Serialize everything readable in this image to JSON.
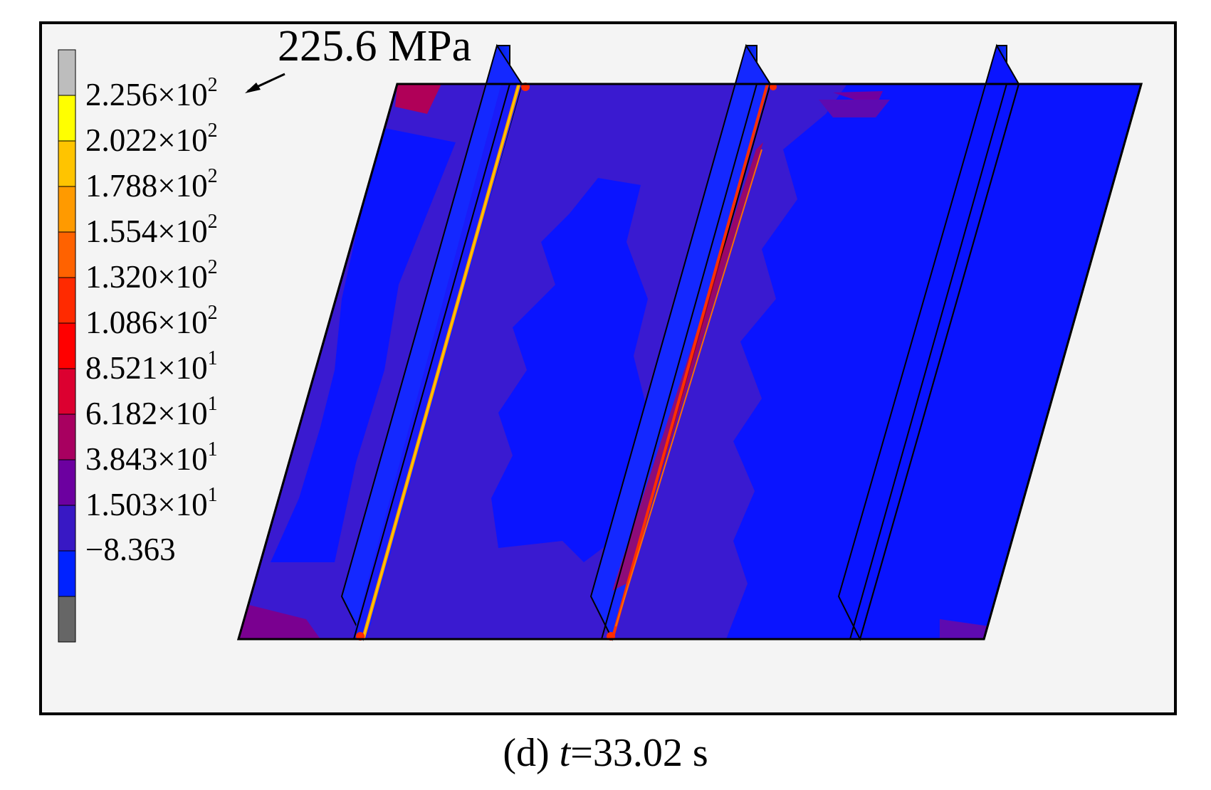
{
  "figure": {
    "annotation": "225.6 MPa",
    "caption_prefix": "(d) ",
    "caption_var": "t",
    "caption_suffix": "=33.02 s"
  },
  "legend": {
    "times": "×",
    "colors": [
      "#bdbdbd",
      "#ffff00",
      "#ffc400",
      "#ff9a00",
      "#ff6200",
      "#ff2a00",
      "#ff0000",
      "#dc0030",
      "#a80060",
      "#6c00a0",
      "#3818c4",
      "#0022ff",
      "#666666"
    ],
    "levels": [
      {
        "mant": "2.256",
        "exp": "2"
      },
      {
        "mant": "2.022",
        "exp": "2"
      },
      {
        "mant": "1.788",
        "exp": "2"
      },
      {
        "mant": "1.554",
        "exp": "2"
      },
      {
        "mant": "1.320",
        "exp": "2"
      },
      {
        "mant": "1.086",
        "exp": "2"
      },
      {
        "mant": "8.521",
        "exp": "1"
      },
      {
        "mant": "6.182",
        "exp": "1"
      },
      {
        "mant": "3.843",
        "exp": "1"
      },
      {
        "mant": "1.503",
        "exp": "1"
      }
    ],
    "min_label": "−8.363"
  }
}
